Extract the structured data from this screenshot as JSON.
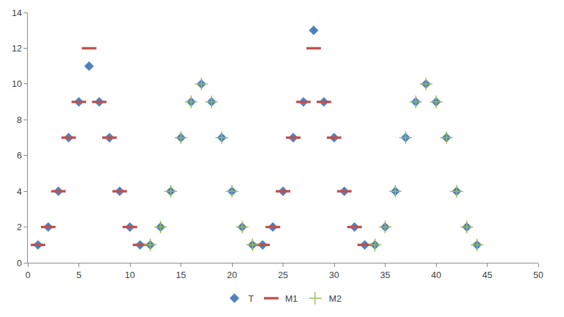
{
  "chart_data": {
    "type": "scatter",
    "x": [
      1,
      2,
      3,
      4,
      5,
      6,
      7,
      8,
      9,
      10,
      11,
      12,
      13,
      14,
      15,
      16,
      17,
      18,
      19,
      20,
      21,
      22,
      23,
      24,
      25,
      26,
      27,
      28,
      29,
      30,
      31,
      32,
      33,
      34,
      35,
      36,
      37,
      38,
      39,
      40,
      41,
      42,
      43,
      44
    ],
    "series": [
      {
        "name": "T",
        "color": "#4f81bd",
        "marker": "diamond",
        "values": [
          1,
          2,
          4,
          7,
          9,
          11,
          9,
          7,
          4,
          2,
          1,
          1,
          2,
          4,
          7,
          9,
          10,
          9,
          7,
          4,
          2,
          1,
          1,
          2,
          4,
          7,
          9,
          13,
          9,
          7,
          4,
          2,
          1,
          1,
          2,
          4,
          7,
          9,
          10,
          9,
          7,
          4,
          2,
          1
        ]
      },
      {
        "name": "M1",
        "color": "#c0504d",
        "marker": "dash",
        "values": [
          1,
          2,
          4,
          7,
          9,
          12,
          9,
          7,
          4,
          2,
          1,
          null,
          null,
          null,
          null,
          null,
          null,
          null,
          null,
          null,
          null,
          null,
          1,
          2,
          4,
          7,
          9,
          12,
          9,
          7,
          4,
          2,
          1,
          null,
          null,
          null,
          null,
          null,
          null,
          null,
          null,
          null,
          null,
          null
        ]
      },
      {
        "name": "M2",
        "color": "#9bbb59",
        "marker": "plus",
        "values": [
          null,
          null,
          null,
          null,
          null,
          null,
          null,
          null,
          null,
          null,
          null,
          1,
          2,
          4,
          7,
          9,
          10,
          9,
          7,
          4,
          2,
          1,
          null,
          null,
          null,
          null,
          null,
          null,
          null,
          null,
          null,
          null,
          null,
          1,
          2,
          4,
          7,
          9,
          10,
          9,
          7,
          4,
          2,
          1
        ]
      }
    ],
    "xlim": [
      0,
      50
    ],
    "xticks": [
      0,
      5,
      10,
      15,
      20,
      25,
      30,
      35,
      40,
      45,
      50
    ],
    "ylim": [
      0,
      14
    ],
    "yticks": [
      0,
      2,
      4,
      6,
      8,
      10,
      12,
      14
    ],
    "grid": false,
    "legend": "bottom"
  }
}
